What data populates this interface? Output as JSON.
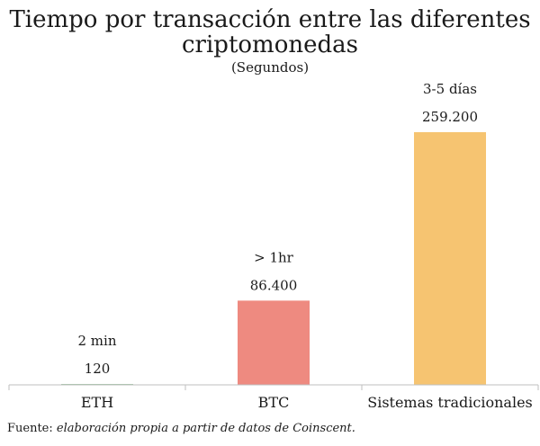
{
  "chart_data": {
    "type": "bar",
    "title_lines": [
      "Tiempo por transacción entre las diferentes",
      "criptomonedas"
    ],
    "subtitle": "(Segundos)",
    "categories": [
      "ETH",
      "BTC",
      "Sistemas tradicionales"
    ],
    "values": [
      120,
      86400,
      259200
    ],
    "value_labels": [
      "120",
      "86.400",
      "259.200"
    ],
    "annotations": [
      "2 min",
      "> 1hr",
      "3-5 días"
    ],
    "colors": [
      "#9fc8a6",
      "#ee8a80",
      "#f6c471"
    ],
    "xlabel": "",
    "ylabel": "",
    "ylim": [
      0,
      259200
    ],
    "grid": false,
    "legend": "none"
  },
  "source": {
    "prefix": "Fuente: ",
    "italic": "elaboración propia a partir de datos de Coinscent."
  }
}
